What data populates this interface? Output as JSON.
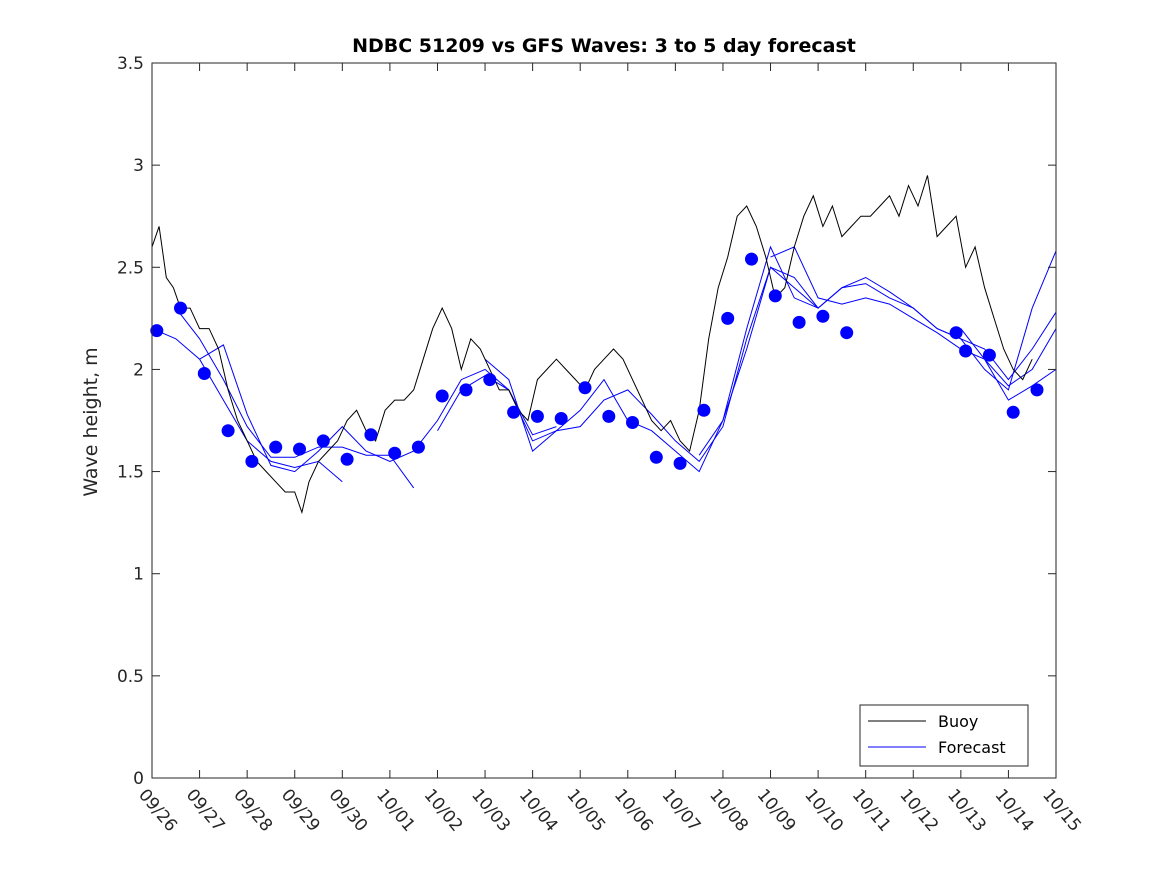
{
  "chart_data": {
    "type": "line",
    "title": "NDBC 51209 vs GFS Waves: 3 to 5 day forecast",
    "xlabel": "",
    "ylabel": "Wave height, m",
    "xlim": [
      0,
      19
    ],
    "ylim": [
      0,
      3.5
    ],
    "yticks": [
      0,
      0.5,
      1,
      1.5,
      2,
      2.5,
      3,
      3.5
    ],
    "ytick_labels": [
      "0",
      "0.5",
      "1",
      "1.5",
      "2",
      "2.5",
      "3",
      "3.5"
    ],
    "xtick_labels": [
      "09/26",
      "09/27",
      "09/28",
      "09/29",
      "09/30",
      "10/01",
      "10/02",
      "10/03",
      "10/04",
      "10/05",
      "10/06",
      "10/07",
      "10/08",
      "10/09",
      "10/10",
      "10/11",
      "10/12",
      "10/13",
      "10/14",
      "10/15"
    ],
    "x_units": "days since 09/26 00:00",
    "legend": {
      "position": "bottom-right",
      "entries": [
        "Buoy",
        "Forecast"
      ]
    },
    "colors": {
      "buoy": "#000000",
      "forecast": "#0000ff",
      "axis": "#262626"
    },
    "buoy": {
      "name": "Buoy",
      "x": [
        0,
        0.15,
        0.3,
        0.45,
        0.6,
        0.8,
        1.0,
        1.2,
        1.4,
        1.6,
        1.8,
        2.0,
        2.2,
        2.4,
        2.6,
        2.8,
        3.0,
        3.15,
        3.3,
        3.5,
        3.7,
        3.9,
        4.1,
        4.3,
        4.5,
        4.7,
        4.9,
        5.1,
        5.3,
        5.5,
        5.7,
        5.9,
        6.1,
        6.3,
        6.5,
        6.7,
        6.9,
        7.1,
        7.3,
        7.5,
        7.7,
        7.9,
        8.1,
        8.3,
        8.5,
        8.7,
        8.9,
        9.1,
        9.3,
        9.5,
        9.7,
        9.9,
        10.1,
        10.3,
        10.5,
        10.7,
        10.9,
        11.1,
        11.3,
        11.5,
        11.7,
        11.9,
        12.1,
        12.3,
        12.5,
        12.7,
        12.9,
        13.1,
        13.3,
        13.5,
        13.7,
        13.9,
        14.1,
        14.3,
        14.5,
        14.7,
        14.9,
        15.1,
        15.3,
        15.5,
        15.7,
        15.9,
        16.1,
        16.3,
        16.5,
        16.7,
        16.9,
        17.1,
        17.3,
        17.5,
        17.7,
        17.9,
        18.1,
        18.3,
        18.5
      ],
      "values": [
        2.6,
        2.7,
        2.45,
        2.4,
        2.3,
        2.3,
        2.2,
        2.2,
        2.1,
        1.9,
        1.75,
        1.65,
        1.55,
        1.5,
        1.45,
        1.4,
        1.4,
        1.3,
        1.45,
        1.55,
        1.6,
        1.65,
        1.75,
        1.8,
        1.7,
        1.65,
        1.8,
        1.85,
        1.85,
        1.9,
        2.05,
        2.2,
        2.3,
        2.2,
        2.0,
        2.15,
        2.1,
        2.0,
        1.9,
        1.9,
        1.8,
        1.75,
        1.95,
        2.0,
        2.05,
        2.0,
        1.95,
        1.9,
        2.0,
        2.05,
        2.1,
        2.05,
        1.95,
        1.85,
        1.75,
        1.7,
        1.75,
        1.65,
        1.6,
        1.8,
        2.15,
        2.4,
        2.55,
        2.75,
        2.8,
        2.7,
        2.55,
        2.35,
        2.4,
        2.6,
        2.75,
        2.85,
        2.7,
        2.8,
        2.65,
        2.7,
        2.75,
        2.75,
        2.8,
        2.85,
        2.75,
        2.9,
        2.8,
        2.95,
        2.65,
        2.7,
        2.75,
        2.5,
        2.6,
        2.4,
        2.25,
        2.1,
        2.0,
        1.95,
        2.05
      ]
    },
    "forecast_runs": [
      {
        "name": "Forecast",
        "x": [
          0,
          0.5,
          1.0,
          1.5,
          2.0,
          2.5,
          3.0,
          3.5,
          4.0
        ],
        "values": [
          2.2,
          2.15,
          2.05,
          1.85,
          1.65,
          1.55,
          1.52,
          1.55,
          1.45
        ]
      },
      {
        "name": "Forecast",
        "x": [
          0.5,
          1.0,
          1.5,
          2.0,
          2.5,
          3.0,
          3.5,
          4.0,
          4.5,
          5.0,
          5.5
        ],
        "values": [
          2.3,
          2.15,
          1.95,
          1.72,
          1.57,
          1.57,
          1.62,
          1.62,
          1.58,
          1.58,
          1.42
        ]
      },
      {
        "name": "Forecast",
        "x": [
          1.0,
          1.5,
          2.0,
          2.5,
          3.0,
          3.5,
          4.0,
          4.5,
          5.0,
          5.5,
          6.0,
          6.5,
          7.0,
          7.5,
          8.0,
          8.5
        ],
        "values": [
          2.05,
          2.12,
          1.78,
          1.53,
          1.5,
          1.6,
          1.72,
          1.6,
          1.55,
          1.6,
          1.75,
          1.95,
          2.0,
          1.9,
          1.68,
          1.72
        ]
      },
      {
        "name": "Forecast",
        "x": [
          6.0,
          6.5,
          7.0,
          7.5,
          8.0,
          8.5,
          9.0,
          9.5,
          10.0,
          10.5,
          11.0,
          11.5,
          12.0,
          12.5,
          13.0,
          13.5,
          14.0
        ],
        "values": [
          1.7,
          1.9,
          1.97,
          1.9,
          1.65,
          1.7,
          1.72,
          1.85,
          1.9,
          1.78,
          1.65,
          1.55,
          1.72,
          2.15,
          2.5,
          2.4,
          2.3
        ]
      },
      {
        "name": "Forecast",
        "x": [
          7.0,
          7.5,
          8.0,
          8.5,
          9.0,
          9.5,
          10.0,
          10.5,
          11.0,
          11.5,
          12.0,
          12.5,
          13.0,
          13.5,
          14.0,
          14.5,
          15.0,
          15.5,
          16.0,
          16.5,
          17.0,
          17.5,
          18.0,
          18.5,
          19.0
        ],
        "values": [
          2.05,
          1.95,
          1.6,
          1.7,
          1.8,
          1.95,
          1.75,
          1.7,
          1.6,
          1.5,
          1.75,
          2.2,
          2.6,
          2.35,
          2.3,
          2.4,
          2.45,
          2.38,
          2.3,
          2.2,
          2.15,
          2.0,
          1.9,
          2.3,
          2.58
        ]
      },
      {
        "name": "Forecast",
        "x": [
          11.5,
          12.0,
          12.5,
          13.0,
          13.5,
          14.0,
          14.5,
          15.0,
          15.5,
          16.0,
          16.5,
          17.0,
          17.5,
          18.0,
          18.5,
          19.0
        ],
        "values": [
          1.58,
          1.75,
          2.1,
          2.5,
          2.45,
          2.3,
          2.4,
          2.42,
          2.35,
          2.3,
          2.2,
          2.15,
          2.1,
          1.95,
          2.1,
          2.28
        ]
      },
      {
        "name": "Forecast",
        "x": [
          13.0,
          13.5,
          14.0,
          14.5,
          15.0,
          15.5,
          16.0,
          16.5,
          17.0,
          17.5,
          18.0,
          18.5,
          19.0
        ],
        "values": [
          2.55,
          2.6,
          2.35,
          2.32,
          2.35,
          2.32,
          2.25,
          2.18,
          2.1,
          2.05,
          1.92,
          2.0,
          2.2
        ]
      },
      {
        "name": "Forecast",
        "x": [
          17.0,
          17.5,
          18.0,
          18.5,
          19.0
        ],
        "values": [
          2.2,
          2.05,
          1.85,
          1.92,
          2.0
        ]
      }
    ],
    "markers": {
      "name": "Forecast points",
      "x": [
        0.1,
        0.6,
        1.1,
        1.6,
        2.1,
        2.6,
        3.1,
        3.6,
        4.1,
        4.6,
        5.1,
        5.6,
        6.1,
        6.6,
        7.1,
        7.6,
        8.1,
        8.6,
        9.1,
        9.6,
        10.1,
        10.6,
        11.1,
        11.6,
        12.1,
        12.6,
        13.1,
        13.6,
        14.1,
        14.6,
        16.9,
        17.1,
        17.6,
        18.1,
        18.6
      ],
      "values": [
        2.19,
        2.3,
        1.98,
        1.7,
        1.55,
        1.62,
        1.61,
        1.65,
        1.56,
        1.68,
        1.59,
        1.62,
        1.87,
        1.9,
        1.95,
        1.79,
        1.77,
        1.76,
        1.91,
        1.77,
        1.74,
        1.57,
        1.54,
        1.8,
        2.25,
        2.54,
        2.36,
        2.23,
        2.26,
        2.18,
        2.18,
        2.09,
        2.07,
        1.79,
        1.9
      ]
    }
  }
}
